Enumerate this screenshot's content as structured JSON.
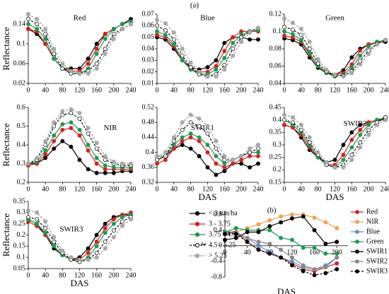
{
  "figure_label": "(a)",
  "legend": [
    {
      "name": "< 3 ton/ha",
      "color": "#000000",
      "fill": "#000000",
      "dash": false
    },
    {
      "name": "3 - 3.75",
      "color": "#d62020",
      "fill": "#d62020",
      "dash": false
    },
    {
      "name": "3.75 - 4.5",
      "color": "#1a9a50",
      "fill": "#1a9a50",
      "dash": false
    },
    {
      "name": "4.5 - 5.25",
      "color": "#000000",
      "fill": "#ffffff",
      "dash": true
    },
    {
      "name": "> 5.25",
      "color": "#999999",
      "fill": "#aaaaaa",
      "dash": true
    }
  ],
  "chart_data": [
    {
      "type": "line",
      "title": "Red",
      "ylabel": "Reflectance",
      "x": [
        0,
        20,
        40,
        60,
        80,
        100,
        120,
        140,
        160,
        180,
        200,
        220,
        240
      ],
      "xlim": [
        0,
        240
      ],
      "xticks": [
        0,
        40,
        80,
        120,
        160,
        200,
        240
      ],
      "ylim": [
        0.02,
        0.16
      ],
      "yticks": [
        0.02,
        0.06,
        0.1,
        0.14
      ],
      "series": [
        {
          "values": [
            0.13,
            0.12,
            0.1,
            0.07,
            0.05,
            0.05,
            0.05,
            0.07,
            0.1,
            0.12,
            0.13,
            0.14,
            0.15
          ]
        },
        {
          "values": [
            0.13,
            0.125,
            0.1,
            0.07,
            0.05,
            0.045,
            0.045,
            0.06,
            0.09,
            0.12,
            0.13,
            0.14,
            0.145
          ]
        },
        {
          "values": [
            0.14,
            0.13,
            0.11,
            0.07,
            0.05,
            0.04,
            0.04,
            0.05,
            0.08,
            0.11,
            0.13,
            0.14,
            0.145
          ]
        },
        {
          "values": [
            0.15,
            0.14,
            0.12,
            0.08,
            0.05,
            0.04,
            0.04,
            0.045,
            0.06,
            0.09,
            0.12,
            0.13,
            0.14
          ]
        },
        {
          "values": [
            0.16,
            0.15,
            0.13,
            0.09,
            0.06,
            0.045,
            0.04,
            0.04,
            0.05,
            0.08,
            0.11,
            0.13,
            0.14
          ]
        }
      ]
    },
    {
      "type": "line",
      "title": "Blue",
      "x": [
        0,
        20,
        40,
        60,
        80,
        100,
        120,
        140,
        160,
        180,
        200,
        220,
        240
      ],
      "xlim": [
        0,
        240
      ],
      "xticks": [
        0,
        40,
        80,
        120,
        160,
        200,
        240
      ],
      "ylim": [
        0.01,
        0.07
      ],
      "yticks": [
        0.01,
        0.02,
        0.03,
        0.04,
        0.05,
        0.06,
        0.07
      ],
      "series": [
        {
          "values": [
            0.05,
            0.048,
            0.04,
            0.03,
            0.024,
            0.022,
            0.024,
            0.03,
            0.045,
            0.05,
            0.05,
            0.048,
            0.048
          ]
        },
        {
          "values": [
            0.052,
            0.05,
            0.042,
            0.03,
            0.022,
            0.02,
            0.02,
            0.025,
            0.038,
            0.05,
            0.055,
            0.055,
            0.055
          ]
        },
        {
          "values": [
            0.055,
            0.052,
            0.044,
            0.03,
            0.022,
            0.018,
            0.018,
            0.022,
            0.032,
            0.045,
            0.052,
            0.055,
            0.056
          ]
        },
        {
          "values": [
            0.06,
            0.056,
            0.048,
            0.034,
            0.024,
            0.018,
            0.016,
            0.018,
            0.026,
            0.04,
            0.05,
            0.055,
            0.058
          ]
        },
        {
          "values": [
            0.065,
            0.062,
            0.054,
            0.04,
            0.028,
            0.02,
            0.016,
            0.016,
            0.022,
            0.034,
            0.046,
            0.054,
            0.058
          ]
        }
      ]
    },
    {
      "type": "line",
      "title": "Green",
      "x": [
        0,
        20,
        40,
        60,
        80,
        100,
        120,
        140,
        160,
        180,
        200,
        220,
        240
      ],
      "xlim": [
        0,
        240
      ],
      "xticks": [
        0,
        40,
        80,
        120,
        160,
        200,
        240
      ],
      "ylim": [
        0.04,
        0.12
      ],
      "yticks": [
        0.04,
        0.06,
        0.08,
        0.1,
        0.12
      ],
      "series": [
        {
          "values": [
            0.092,
            0.09,
            0.085,
            0.07,
            0.058,
            0.052,
            0.05,
            0.055,
            0.07,
            0.08,
            0.085,
            0.087,
            0.088
          ]
        },
        {
          "values": [
            0.095,
            0.093,
            0.088,
            0.073,
            0.06,
            0.053,
            0.05,
            0.052,
            0.062,
            0.078,
            0.085,
            0.088,
            0.09
          ]
        },
        {
          "values": [
            0.1,
            0.097,
            0.09,
            0.075,
            0.06,
            0.052,
            0.048,
            0.05,
            0.058,
            0.072,
            0.083,
            0.088,
            0.09
          ]
        },
        {
          "values": [
            0.105,
            0.102,
            0.096,
            0.08,
            0.063,
            0.054,
            0.049,
            0.049,
            0.054,
            0.066,
            0.078,
            0.086,
            0.09
          ]
        },
        {
          "values": [
            0.115,
            0.11,
            0.103,
            0.088,
            0.068,
            0.056,
            0.05,
            0.048,
            0.052,
            0.062,
            0.074,
            0.085,
            0.09
          ]
        }
      ]
    },
    {
      "type": "line",
      "title": "NIR",
      "ylabel": "Reflectance",
      "x": [
        0,
        20,
        40,
        60,
        80,
        100,
        120,
        140,
        160,
        180,
        200,
        220,
        240
      ],
      "xlim": [
        0,
        240
      ],
      "xticks": [
        0,
        40,
        80,
        120,
        160,
        200,
        240
      ],
      "ylim": [
        0.2,
        0.6
      ],
      "yticks": [
        0.2,
        0.3,
        0.4,
        0.5,
        0.6
      ],
      "series": [
        {
          "values": [
            0.3,
            0.3,
            0.33,
            0.38,
            0.42,
            0.39,
            0.32,
            0.27,
            0.25,
            0.25,
            0.25,
            0.26,
            0.26
          ]
        },
        {
          "values": [
            0.29,
            0.3,
            0.35,
            0.42,
            0.48,
            0.49,
            0.45,
            0.37,
            0.3,
            0.27,
            0.27,
            0.27,
            0.27
          ]
        },
        {
          "values": [
            0.3,
            0.31,
            0.37,
            0.45,
            0.51,
            0.52,
            0.48,
            0.4,
            0.33,
            0.29,
            0.28,
            0.28,
            0.28
          ]
        },
        {
          "values": [
            0.3,
            0.32,
            0.4,
            0.5,
            0.56,
            0.57,
            0.54,
            0.46,
            0.38,
            0.32,
            0.3,
            0.29,
            0.29
          ]
        },
        {
          "values": [
            0.3,
            0.33,
            0.42,
            0.52,
            0.58,
            0.59,
            0.57,
            0.49,
            0.41,
            0.34,
            0.31,
            0.3,
            0.3
          ]
        }
      ]
    },
    {
      "type": "line",
      "title": "SWIR1",
      "xlabel": "DAS",
      "x": [
        0,
        20,
        40,
        60,
        80,
        100,
        120,
        140,
        160,
        180,
        200,
        220,
        240
      ],
      "xlim": [
        0,
        240
      ],
      "xticks": [
        0,
        40,
        80,
        120,
        160,
        200,
        240
      ],
      "ylim": [
        0.32,
        0.52
      ],
      "yticks": [
        0.32,
        0.36,
        0.4,
        0.44,
        0.48,
        0.52
      ],
      "series": [
        {
          "values": [
            0.38,
            0.39,
            0.41,
            0.42,
            0.41,
            0.39,
            0.36,
            0.34,
            0.35,
            0.37,
            0.37,
            0.36,
            0.37
          ]
        },
        {
          "values": [
            0.37,
            0.38,
            0.41,
            0.43,
            0.44,
            0.43,
            0.4,
            0.37,
            0.36,
            0.37,
            0.38,
            0.39,
            0.39
          ]
        },
        {
          "values": [
            0.39,
            0.39,
            0.42,
            0.44,
            0.45,
            0.44,
            0.42,
            0.39,
            0.37,
            0.38,
            0.39,
            0.4,
            0.4
          ]
        },
        {
          "values": [
            0.38,
            0.39,
            0.43,
            0.46,
            0.48,
            0.47,
            0.45,
            0.41,
            0.38,
            0.38,
            0.39,
            0.4,
            0.41
          ]
        },
        {
          "values": [
            0.39,
            0.4,
            0.44,
            0.48,
            0.5,
            0.49,
            0.47,
            0.43,
            0.39,
            0.38,
            0.39,
            0.41,
            0.42
          ]
        }
      ]
    },
    {
      "type": "line",
      "title": "SWIR2",
      "xlabel": "DAS",
      "x": [
        0,
        20,
        40,
        60,
        80,
        100,
        120,
        140,
        160,
        180,
        200,
        220,
        240
      ],
      "xlim": [
        0,
        240
      ],
      "xticks": [
        0,
        40,
        80,
        120,
        160,
        200,
        240
      ],
      "ylim": [
        0.15,
        0.45
      ],
      "yticks": [
        0.15,
        0.2,
        0.25,
        0.3,
        0.35,
        0.4,
        0.45
      ],
      "series": [
        {
          "values": [
            0.38,
            0.37,
            0.33,
            0.28,
            0.25,
            0.23,
            0.24,
            0.3,
            0.35,
            0.38,
            0.39,
            0.4,
            0.4
          ]
        },
        {
          "values": [
            0.38,
            0.37,
            0.34,
            0.29,
            0.25,
            0.22,
            0.22,
            0.26,
            0.32,
            0.36,
            0.39,
            0.4,
            0.41
          ]
        },
        {
          "values": [
            0.4,
            0.38,
            0.35,
            0.3,
            0.25,
            0.22,
            0.21,
            0.24,
            0.29,
            0.34,
            0.38,
            0.4,
            0.41
          ]
        },
        {
          "values": [
            0.4,
            0.39,
            0.36,
            0.31,
            0.26,
            0.22,
            0.21,
            0.22,
            0.26,
            0.31,
            0.36,
            0.39,
            0.41
          ]
        },
        {
          "values": [
            0.42,
            0.41,
            0.38,
            0.33,
            0.27,
            0.23,
            0.21,
            0.21,
            0.24,
            0.29,
            0.34,
            0.38,
            0.4
          ]
        }
      ]
    },
    {
      "type": "line",
      "title": "SWIR3",
      "ylabel": "Reflectance",
      "xlabel": "DAS",
      "x": [
        0,
        20,
        40,
        60,
        80,
        100,
        120,
        140,
        160,
        180,
        200,
        220,
        240
      ],
      "xlim": [
        0,
        240
      ],
      "xticks": [
        0,
        40,
        80,
        120,
        160,
        200,
        240
      ],
      "ylim": [
        0.05,
        0.35
      ],
      "yticks": [
        0.05,
        0.1,
        0.15,
        0.2,
        0.25,
        0.3,
        0.35
      ],
      "series": [
        {
          "values": [
            0.27,
            0.25,
            0.2,
            0.14,
            0.11,
            0.09,
            0.1,
            0.14,
            0.2,
            0.25,
            0.28,
            0.29,
            0.29
          ]
        },
        {
          "values": [
            0.26,
            0.24,
            0.2,
            0.15,
            0.11,
            0.09,
            0.09,
            0.12,
            0.17,
            0.23,
            0.27,
            0.29,
            0.3
          ]
        },
        {
          "values": [
            0.27,
            0.25,
            0.21,
            0.15,
            0.11,
            0.09,
            0.08,
            0.1,
            0.15,
            0.21,
            0.25,
            0.28,
            0.29
          ]
        },
        {
          "values": [
            0.28,
            0.27,
            0.23,
            0.17,
            0.12,
            0.09,
            0.08,
            0.09,
            0.12,
            0.17,
            0.22,
            0.26,
            0.28
          ]
        },
        {
          "values": [
            0.31,
            0.3,
            0.26,
            0.19,
            0.13,
            0.1,
            0.09,
            0.09,
            0.1,
            0.14,
            0.19,
            0.24,
            0.27
          ]
        }
      ]
    },
    {
      "type": "line",
      "title": "(b)",
      "ylabel": "r",
      "xlabel": "DAS",
      "x": [
        0,
        20,
        40,
        60,
        80,
        100,
        120,
        140,
        160,
        180,
        200
      ],
      "xlim": [
        0,
        220
      ],
      "xticks": [
        0,
        40,
        80,
        120,
        160,
        200
      ],
      "ylim": [
        -0.8,
        0.9
      ],
      "yticks": [
        -0.8,
        -0.4,
        0,
        0.4,
        0.8
      ],
      "series": [
        {
          "name": "Red",
          "color": "#d62020",
          "values": [
            0.35,
            0.35,
            0.1,
            -0.1,
            -0.2,
            -0.3,
            -0.45,
            -0.6,
            -0.65,
            -0.55,
            -0.45
          ]
        },
        {
          "name": "NIR",
          "color": "#f0a050",
          "values": [
            0.3,
            0.35,
            0.45,
            0.55,
            0.65,
            0.75,
            0.8,
            0.8,
            0.72,
            0.6,
            0.45
          ]
        },
        {
          "name": "Blue",
          "color": "#5b8fc7",
          "values": [
            0.35,
            0.3,
            0.2,
            0.0,
            -0.15,
            -0.3,
            -0.4,
            -0.55,
            -0.6,
            -0.5,
            -0.3
          ]
        },
        {
          "name": "Green",
          "color": "#1a9a50",
          "values": [
            0.35,
            0.45,
            0.4,
            0.4,
            0.4,
            0.2,
            0.15,
            -0.05,
            -0.05,
            -0.2,
            -0.2
          ]
        },
        {
          "name": "SWIR1",
          "color": "#000000",
          "values": [
            0.15,
            0.2,
            0.35,
            0.35,
            0.5,
            0.6,
            0.7,
            0.75,
            0.4,
            0.05,
            0.1
          ]
        },
        {
          "name": "SWIR2",
          "color": "#888888",
          "values": [
            0.3,
            0.35,
            0.2,
            0.1,
            0.05,
            -0.1,
            -0.3,
            -0.5,
            -0.6,
            -0.55,
            -0.3
          ]
        },
        {
          "name": "SWIR3",
          "color": "#000000",
          "dash": true,
          "values": [
            0.3,
            0.3,
            0.1,
            -0.1,
            -0.2,
            -0.3,
            -0.5,
            -0.65,
            -0.75,
            -0.7,
            -0.6
          ]
        }
      ]
    }
  ]
}
